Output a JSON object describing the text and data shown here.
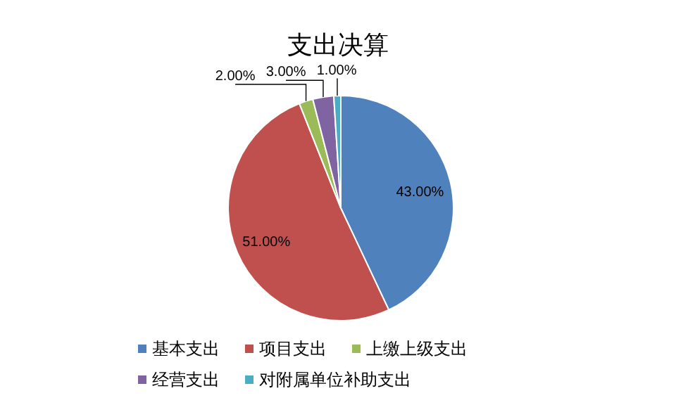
{
  "chart_data": {
    "type": "pie",
    "title": "支出决算",
    "categories": [
      "基本支出",
      "项目支出",
      "上缴上级支出",
      "经营支出",
      "对附属单位补助支出"
    ],
    "values": [
      43,
      51,
      2,
      3,
      1
    ],
    "value_labels": [
      "43.00%",
      "51.00%",
      "2.00%",
      "3.00%",
      "1.00%"
    ],
    "colors": [
      "#4f81bd",
      "#c0504d",
      "#9bbb59",
      "#8064a2",
      "#4bacc6"
    ],
    "legend": "bottom"
  }
}
